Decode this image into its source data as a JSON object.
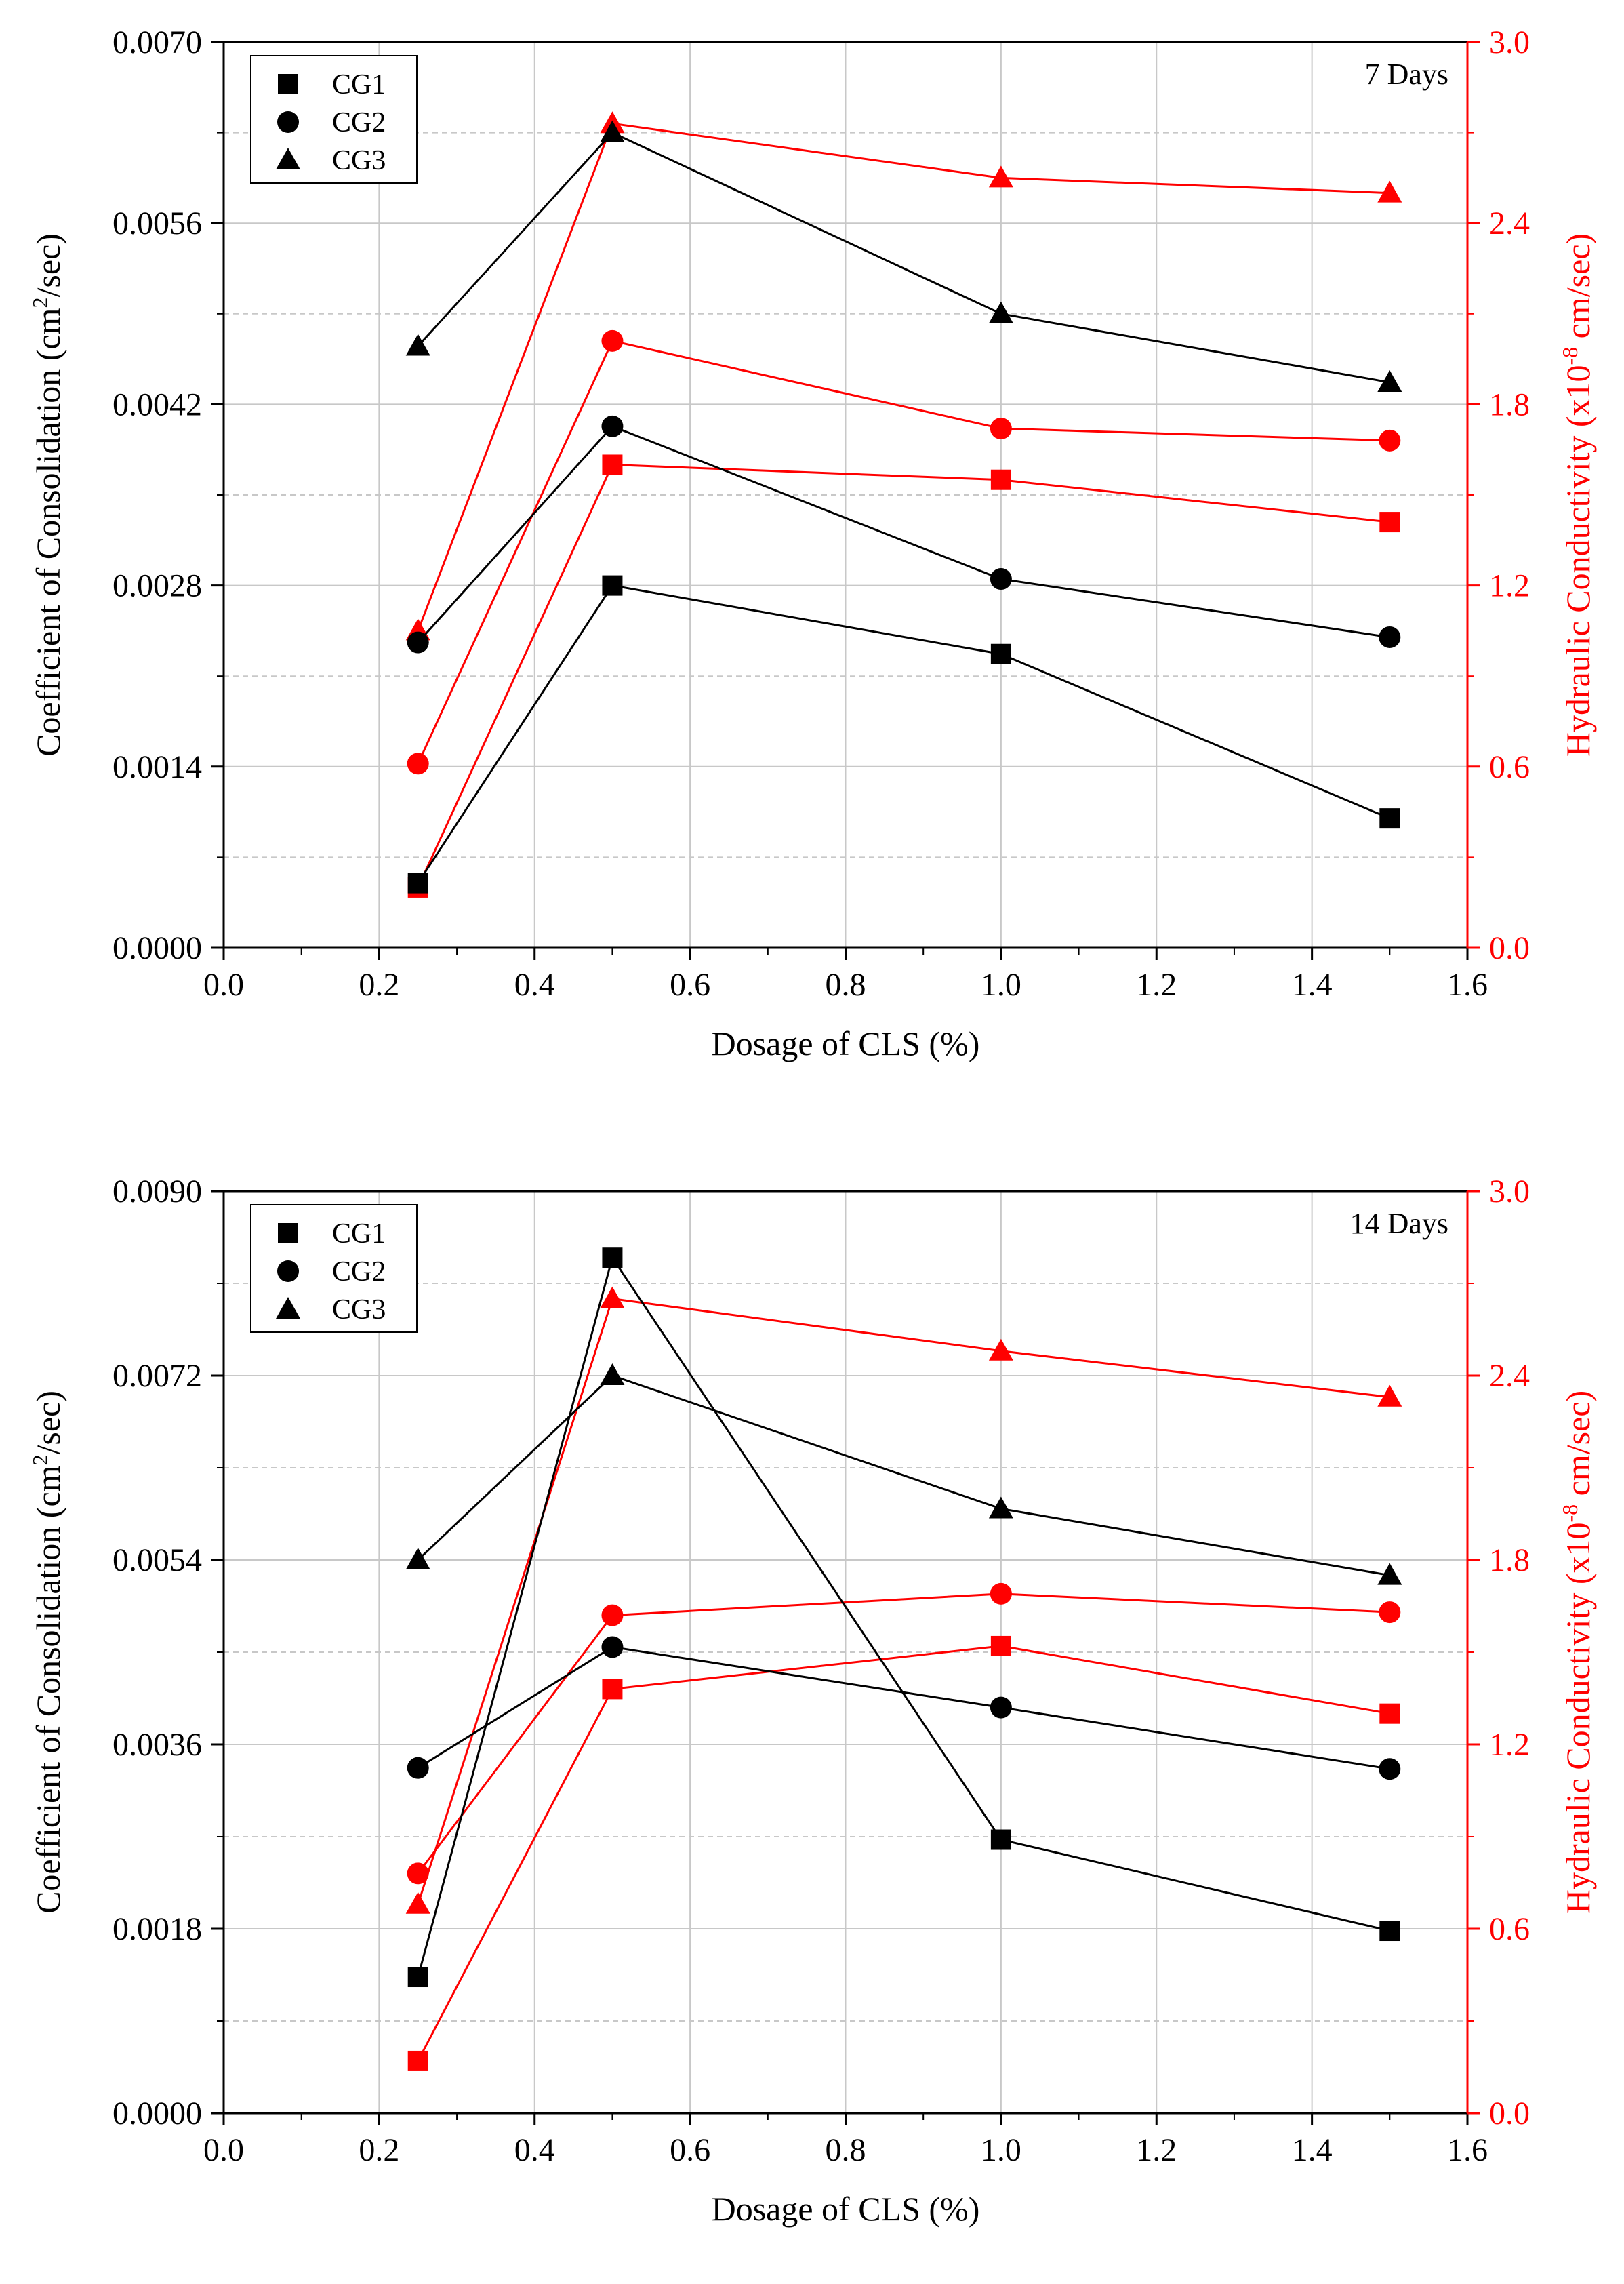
{
  "colors": {
    "primary_series": "#000000",
    "hydraulic_series": "#ff0000",
    "grid": "#c8c8c8",
    "axis": "#000000",
    "right_axis": "#ff0000"
  },
  "chart_data": [
    {
      "type": "line",
      "title": "7 Days",
      "xlabel": "Dosage of CLS (%)",
      "ylabel": "Coefficient of Consolidation (cm²/sec)",
      "ylabel_parts": [
        "Coefficient of Consolidation (cm",
        "2",
        "/sec)"
      ],
      "y2label": "Hydraulic Conductivity (x10⁻⁸ cm/sec)",
      "y2label_parts": [
        "Hydraulic Conductivity (x10",
        "-8",
        " cm/sec)"
      ],
      "xlim": [
        0.0,
        1.6
      ],
      "ylim": [
        0.0,
        0.007
      ],
      "y2lim": [
        0.0,
        3.0
      ],
      "xticks": [
        "0.0",
        "0.2",
        "0.4",
        "0.6",
        "0.8",
        "1.0",
        "1.2",
        "1.4",
        "1.6"
      ],
      "yticks": [
        "0.0000",
        "0.0014",
        "0.0028",
        "0.0042",
        "0.0056",
        "0.0070"
      ],
      "y2ticks": [
        "0.0",
        "0.6",
        "1.2",
        "1.8",
        "2.4",
        "3.0"
      ],
      "grid": true,
      "legend": "top-left",
      "x": [
        0.25,
        0.5,
        1.0,
        1.5
      ],
      "series": [
        {
          "name": "CG1",
          "marker": "square",
          "axis": "left",
          "values": [
            0.0005,
            0.0028,
            0.00227,
            0.001
          ]
        },
        {
          "name": "CG2",
          "marker": "circle",
          "axis": "left",
          "values": [
            0.00236,
            0.00403,
            0.00285,
            0.0024
          ]
        },
        {
          "name": "CG3",
          "marker": "triangle",
          "axis": "left",
          "values": [
            0.00465,
            0.0063,
            0.0049,
            0.00437
          ]
        }
      ],
      "series_right": [
        {
          "name": "CG1 hydraulic conductivity",
          "marker": "square",
          "axis": "right",
          "values": [
            0.2,
            1.6,
            1.55,
            1.41
          ]
        },
        {
          "name": "CG2 hydraulic conductivity",
          "marker": "circle",
          "axis": "right",
          "values": [
            0.61,
            2.01,
            1.72,
            1.68
          ]
        },
        {
          "name": "CG3 hydraulic conductivity",
          "marker": "triangle",
          "axis": "right",
          "values": [
            1.05,
            2.73,
            2.55,
            2.5
          ]
        }
      ]
    },
    {
      "type": "line",
      "title": "14 Days",
      "xlabel": "Dosage of CLS (%)",
      "ylabel": "Coefficient of Consolidation (cm²/sec)",
      "ylabel_parts": [
        "Coefficient of Consolidation (cm",
        "2",
        "/sec)"
      ],
      "y2label": "Hydraulic Conductivity (x10⁻⁸ cm/sec)",
      "y2label_parts": [
        "Hydraulic Conductivity (x10",
        "-8",
        " cm/sec)"
      ],
      "xlim": [
        0.0,
        1.6
      ],
      "ylim": [
        0.0,
        0.009
      ],
      "y2lim": [
        0.0,
        3.0
      ],
      "xticks": [
        "0.0",
        "0.2",
        "0.4",
        "0.6",
        "0.8",
        "1.0",
        "1.2",
        "1.4",
        "1.6"
      ],
      "yticks": [
        "0.0000",
        "0.0018",
        "0.0036",
        "0.0054",
        "0.0072",
        "0.0090"
      ],
      "y2ticks": [
        "0.0",
        "0.6",
        "1.2",
        "1.8",
        "2.4",
        "3.0"
      ],
      "grid": true,
      "legend": "top-left",
      "x": [
        0.25,
        0.5,
        1.0,
        1.5
      ],
      "series": [
        {
          "name": "CG1",
          "marker": "square",
          "axis": "left",
          "values": [
            0.00133,
            0.00835,
            0.00267,
            0.00178
          ]
        },
        {
          "name": "CG2",
          "marker": "circle",
          "axis": "left",
          "values": [
            0.00337,
            0.00455,
            0.00396,
            0.00336
          ]
        },
        {
          "name": "CG3",
          "marker": "triangle",
          "axis": "left",
          "values": [
            0.0054,
            0.0072,
            0.0059,
            0.00525
          ]
        }
      ],
      "series_right": [
        {
          "name": "CG1 hydraulic conductivity",
          "marker": "square",
          "axis": "right",
          "values": [
            0.17,
            1.38,
            1.52,
            1.3
          ]
        },
        {
          "name": "CG2 hydraulic conductivity",
          "marker": "circle",
          "axis": "right",
          "values": [
            0.78,
            1.62,
            1.69,
            1.63
          ]
        },
        {
          "name": "CG3 hydraulic conductivity",
          "marker": "triangle",
          "axis": "right",
          "values": [
            0.68,
            2.65,
            2.48,
            2.33
          ]
        }
      ]
    }
  ]
}
